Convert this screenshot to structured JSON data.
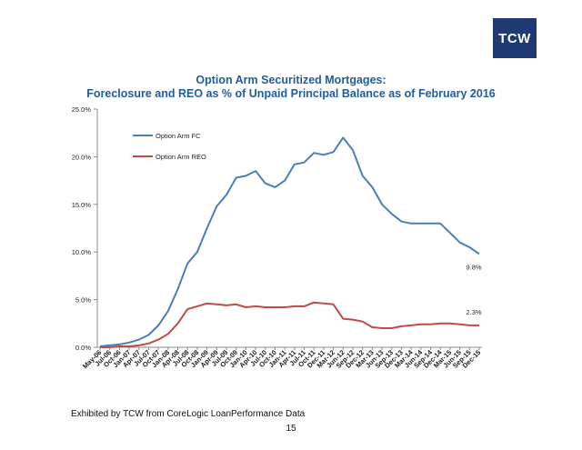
{
  "logo": {
    "text": "TCW",
    "color": "#1f3a73"
  },
  "title_line1": "Option Arm Securitized Mortgages:",
  "title_line2": "Foreclosure and REO as % of Unpaid Principal Balance as of February 2016",
  "footer": "Exhibited by TCW from CoreLogic LoanPerformance Data",
  "page_number": "15",
  "chart_data": {
    "type": "line",
    "title": "Option Arm Securitized Mortgages: Foreclosure and REO as % of Unpaid Principal Balance as of February 2016",
    "xlabel": "",
    "ylabel": "",
    "ylim": [
      0,
      25
    ],
    "yticks": [
      "0.0%",
      "5.0%",
      "10.0%",
      "15.0%",
      "20.0%",
      "25.0%"
    ],
    "xtick_labels": [
      "May-06",
      "Jul-06",
      "Oct-06",
      "Jan-07",
      "Apr-07",
      "Jul-07",
      "Oct-07",
      "Jan-08",
      "Apr-08",
      "Jul-08",
      "Oct-08",
      "Jan-09",
      "Apr-09",
      "Jul-09",
      "Oct-09",
      "Jan-10",
      "Apr-10",
      "Jul-10",
      "Oct-10",
      "Jan-11",
      "Apr-11",
      "Jul-11",
      "Oct-11",
      "Dec-11",
      "Mar-12",
      "Jun-12",
      "Sep-12",
      "Dec-12",
      "Mar-13",
      "Jun-13",
      "Sep-13",
      "Dec-13",
      "Mar-14",
      "Jun-14",
      "Sep-14",
      "Dec-14",
      "Mar-15",
      "Jun-15",
      "Sep-15",
      "Dec-15"
    ],
    "grid": false,
    "legend": "upper-left",
    "series": [
      {
        "name": "Option Arm FC",
        "color": "#4a7ebb",
        "values": [
          0.1,
          0.2,
          0.3,
          0.5,
          0.8,
          1.3,
          2.3,
          3.8,
          6.1,
          8.8,
          10.0,
          12.5,
          14.8,
          16.0,
          17.8,
          18.0,
          18.5,
          17.2,
          16.8,
          17.5,
          19.2,
          19.4,
          20.4,
          20.2,
          20.5,
          22.0,
          20.7,
          18.0,
          16.8,
          15.0,
          14.0,
          13.2,
          13.0,
          13.0,
          13.0,
          13.0,
          12.0,
          11.0,
          10.5,
          9.8
        ]
      },
      {
        "name": "Option Arm REO",
        "color": "#be4b48",
        "values": [
          0.0,
          0.0,
          0.1,
          0.1,
          0.2,
          0.4,
          0.8,
          1.4,
          2.5,
          4.0,
          4.3,
          4.6,
          4.5,
          4.4,
          4.5,
          4.2,
          4.3,
          4.2,
          4.2,
          4.2,
          4.3,
          4.3,
          4.7,
          4.6,
          4.5,
          3.0,
          2.9,
          2.7,
          2.1,
          2.0,
          2.0,
          2.2,
          2.3,
          2.4,
          2.4,
          2.5,
          2.5,
          2.4,
          2.3,
          2.3
        ]
      }
    ],
    "annotations": [
      {
        "text": "9.8%",
        "series": 0
      },
      {
        "text": "2.3%",
        "series": 1
      }
    ]
  }
}
